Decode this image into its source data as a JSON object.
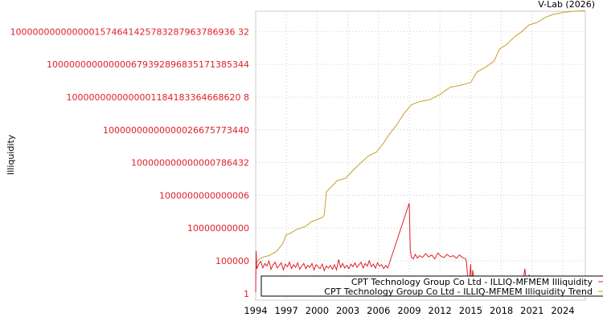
{
  "chart_data": {
    "type": "line",
    "title": "V-Lab (2026)",
    "xlabel": "",
    "ylabel": "Illiquidity",
    "y_scale": "log10",
    "xlim": [
      1994,
      2026.2
    ],
    "ylim_log10": [
      -1,
      43.1
    ],
    "grid": true,
    "legend_placement": "bottom-right",
    "x_ticks": [
      1994,
      1997,
      2000,
      2003,
      2006,
      2009,
      2012,
      2015,
      2018,
      2021,
      2024
    ],
    "x_tick_labels": [
      "1994",
      "1997",
      "2000",
      "2003",
      "2006",
      "2009",
      "2012",
      "2015",
      "2018",
      "2021",
      "2024"
    ],
    "y_ticks_log10": [
      0,
      5,
      10,
      15,
      20,
      25,
      30,
      35,
      40
    ],
    "y_tick_labels": [
      "1",
      "100000",
      "10000000000",
      "1000000000000006",
      "100000000000000786432",
      "10000000000000026675773440",
      "1000000000000001184183364668620 8",
      "100000000000000679392896835171385344",
      "1000000000000001574641425783287963786936 32"
    ],
    "series": [
      {
        "name": "CPT Technology Group Co Ltd - ILLIQ-MFMEM Illiquidity",
        "color": "#e0202a",
        "x": [
          1994.0,
          1994.05,
          1994.1,
          1994.3,
          1994.5,
          1994.7,
          1994.9,
          1995.1,
          1995.3,
          1995.5,
          1995.7,
          1995.9,
          1996.1,
          1996.3,
          1996.5,
          1996.7,
          1996.9,
          1997.1,
          1997.3,
          1997.5,
          1997.7,
          1997.9,
          1998.1,
          1998.3,
          1998.5,
          1998.7,
          1998.9,
          1999.1,
          1999.3,
          1999.5,
          1999.7,
          1999.9,
          2000.1,
          2000.3,
          2000.5,
          2000.7,
          2000.9,
          2001.1,
          2001.3,
          2001.5,
          2001.7,
          2001.9,
          2002.1,
          2002.3,
          2002.5,
          2002.7,
          2002.9,
          2003.1,
          2003.3,
          2003.5,
          2003.7,
          2003.9,
          2004.1,
          2004.3,
          2004.5,
          2004.7,
          2004.9,
          2005.1,
          2005.3,
          2005.5,
          2005.7,
          2005.9,
          2006.1,
          2006.3,
          2006.5,
          2006.7,
          2006.9,
          2009.0,
          2009.1,
          2009.2,
          2009.4,
          2009.6,
          2009.8,
          2010.0,
          2010.3,
          2010.6,
          2010.9,
          2011.2,
          2011.5,
          2011.8,
          2012.1,
          2012.4,
          2012.7,
          2013.0,
          2013.3,
          2013.6,
          2013.9,
          2014.2,
          2014.5,
          2014.6,
          2014.8,
          2015.0,
          2015.1,
          2015.2,
          2015.5,
          2016.0,
          2016.5,
          2017.0,
          2017.5,
          2018.0,
          2018.5,
          2019.0,
          2019.5,
          2020.0,
          2020.3,
          2020.5,
          2020.7,
          2021.0,
          2021.5,
          2022.0,
          2022.5,
          2023.0,
          2023.5,
          2024.0,
          2024.5,
          2025.0,
          2025.5,
          2026.0
        ],
        "log10_values": [
          0.2,
          6.5,
          3.8,
          4.5,
          4.9,
          3.9,
          4.6,
          4.2,
          5.0,
          3.7,
          4.4,
          4.8,
          3.9,
          4.3,
          4.7,
          3.6,
          4.5,
          4.1,
          4.8,
          3.8,
          4.4,
          4.0,
          4.7,
          3.7,
          4.2,
          4.6,
          3.8,
          4.3,
          4.0,
          4.6,
          3.6,
          4.4,
          4.1,
          3.8,
          4.5,
          3.5,
          4.2,
          3.9,
          4.3,
          3.7,
          4.4,
          3.6,
          5.2,
          4.0,
          4.6,
          3.9,
          4.3,
          3.8,
          4.5,
          4.1,
          4.7,
          4.0,
          4.4,
          4.8,
          3.9,
          4.6,
          4.2,
          5.0,
          4.1,
          4.5,
          3.9,
          4.7,
          4.2,
          4.4,
          3.8,
          4.3,
          3.9,
          13.8,
          6.8,
          5.6,
          5.3,
          6.0,
          5.4,
          5.8,
          5.5,
          6.1,
          5.6,
          5.9,
          5.3,
          6.2,
          5.7,
          5.5,
          6.0,
          5.6,
          5.8,
          5.4,
          5.9,
          5.5,
          5.3,
          4.8,
          0.3,
          4.5,
          0.4,
          3.6,
          0.2,
          0.8,
          0.1,
          0.6,
          0.3,
          0.9,
          0.2,
          0.7,
          0.4,
          0.8,
          3.8,
          0.5,
          2.9,
          0.6,
          0.3,
          0.5,
          0.2,
          0.6,
          0.4,
          0.5,
          0.2,
          0.1,
          0.0,
          0.1
        ]
      },
      {
        "name": "CPT Technology Group Co Ltd - ILLIQ-MFMEM Illiquidity Trend",
        "color": "#c8a02a",
        "x": [
          1994.0,
          1994.3,
          1994.8,
          1995.3,
          1996.0,
          1996.6,
          1997.0,
          1997.4,
          1998.0,
          1998.8,
          1999.5,
          2000.5,
          2000.7,
          2000.9,
          2001.5,
          2002.0,
          2002.8,
          2003.5,
          2004.3,
          2005.0,
          2005.8,
          2006.5,
          2007.0,
          2007.8,
          2008.5,
          2009.2,
          2010.0,
          2011.0,
          2012.0,
          2013.0,
          2014.0,
          2015.0,
          2015.6,
          2016.5,
          2017.3,
          2017.8,
          2018.5,
          2019.3,
          2020.0,
          2020.7,
          2021.5,
          2022.2,
          2023.0,
          2024.0,
          2025.0,
          2026.2
        ],
        "log10_values": [
          4.5,
          5.2,
          5.6,
          5.8,
          6.4,
          7.5,
          9.0,
          9.2,
          9.8,
          10.2,
          11.0,
          11.6,
          12.0,
          15.5,
          16.5,
          17.3,
          17.6,
          18.8,
          20.0,
          21.0,
          21.6,
          23.0,
          24.2,
          25.8,
          27.5,
          28.8,
          29.3,
          29.6,
          30.4,
          31.5,
          31.8,
          32.2,
          33.8,
          34.6,
          35.5,
          37.3,
          38.0,
          39.2,
          40.0,
          41.0,
          41.4,
          42.1,
          42.6,
          42.9,
          43.1,
          43.2
        ]
      }
    ]
  }
}
